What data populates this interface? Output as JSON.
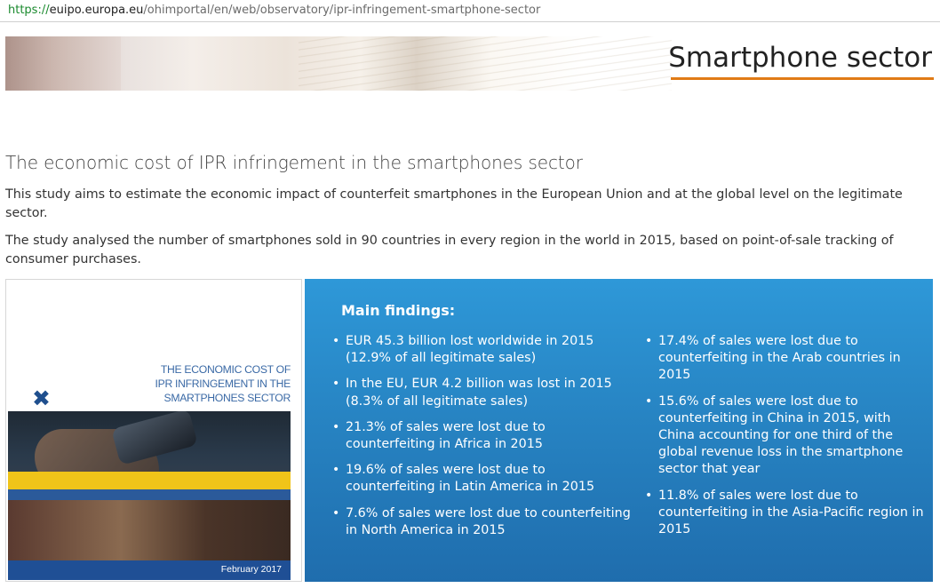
{
  "browser": {
    "url_scheme": "https://",
    "url_host": "euipo.europa.eu",
    "url_path": "/ohimportal/en/web/observatory/ipr-infringement-smartphone-sector"
  },
  "banner": {
    "title": "Smartphone sector",
    "accent_color": "#e07b16"
  },
  "article": {
    "heading": "The economic cost of IPR infringement in the smartphones sector",
    "paragraphs": [
      "This study aims to estimate the economic impact of counterfeit smartphones in the European Union and at the global level on the legitimate sector.",
      "The study analysed the number of smartphones sold in 90 countries in every region in the world in 2015, based on point-of-sale tracking of consumer purchases."
    ]
  },
  "cover": {
    "title_lines": [
      "THE ECONOMIC COST OF",
      "IPR INFRINGEMENT IN THE",
      "SMARTPHONES SECTOR"
    ],
    "date": "February 2017",
    "x_glyph": "✖"
  },
  "findings": {
    "title": "Main findings:",
    "left": [
      "EUR 45.3 billion lost worldwide in 2015 (12.9% of all legitimate sales)",
      "In the EU, EUR 4.2 billion was lost in 2015 (8.3% of all legitimate sales)",
      "21.3% of sales were lost due to counterfeiting in Africa in 2015",
      "19.6% of sales were lost due to counterfeiting in Latin America in 2015",
      "7.6% of sales were lost due to counterfeiting in North America in 2015"
    ],
    "right": [
      "17.4% of sales were lost due to counterfeiting in the Arab countries in 2015",
      "15.6% of sales were lost due to counterfeiting in China in 2015, with China accounting for one third of the global revenue loss in the smartphone sector that year",
      "11.8% of sales were lost due to counterfeiting in the Asia-Pacific region in 2015"
    ],
    "background_color": "#2784c3"
  }
}
